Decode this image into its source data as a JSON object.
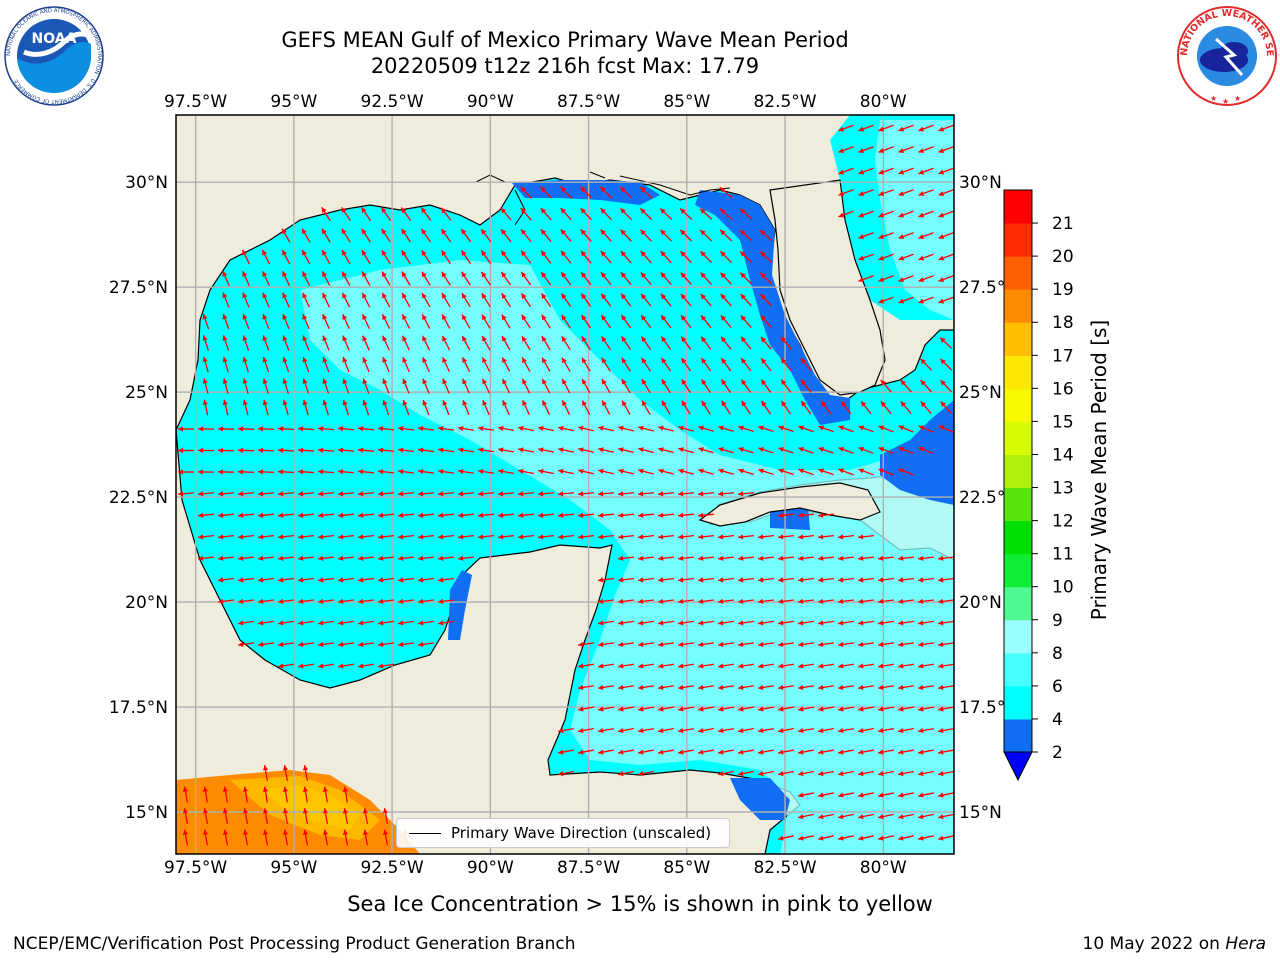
{
  "title": {
    "line1": "GEFS MEAN Gulf of Mexico Primary Wave Mean Period",
    "line2": "20220509 t12z 216h fcst   Max: 17.79"
  },
  "logos": {
    "left_icon": "noaa-logo-icon",
    "left_text": "NOAA",
    "left_ring_text": "NATIONAL OCEANIC AND ATMOSPHERIC ADMINISTRATION · U.S. DEPARTMENT OF COMMERCE",
    "right_icon": "national-weather-service-logo-icon",
    "right_ring_text": "NATIONAL WEATHER SERVICE"
  },
  "map": {
    "lon_range": [
      -98,
      -78.2
    ],
    "lat_range": [
      14,
      31.6
    ],
    "lon_ticks": [
      "97.5°W",
      "95°W",
      "92.5°W",
      "90°W",
      "87.5°W",
      "85°W",
      "82.5°W",
      "80°W"
    ],
    "lon_tick_values": [
      -97.5,
      -95,
      -92.5,
      -90,
      -87.5,
      -85,
      -82.5,
      -80
    ],
    "lat_ticks": [
      "30°N",
      "27.5°N",
      "25°N",
      "22.5°N",
      "20°N",
      "17.5°N",
      "15°N"
    ],
    "lat_tick_values": [
      30,
      27.5,
      25,
      22.5,
      20,
      17.5,
      15
    ],
    "grid": true,
    "land_color": "#efecdc",
    "arrow_color": "#ff0000",
    "legend_label": "Primary Wave Direction (unscaled)",
    "legend_position": "lower-center"
  },
  "colorbar": {
    "label": "Primary Wave Mean Period [s]",
    "tick_labels": [
      "2",
      "4",
      "6",
      "8",
      "9",
      "10",
      "11",
      "12",
      "13",
      "14",
      "15",
      "16",
      "17",
      "18",
      "19",
      "20",
      "21"
    ],
    "levels": [
      2,
      4,
      6,
      8,
      9,
      10,
      11,
      12,
      13,
      14,
      15,
      16,
      17,
      18,
      19,
      20,
      21
    ],
    "colors": [
      "#0f6ef2",
      "#00ffff",
      "#48ffff",
      "#9bfefe",
      "#4ff98f",
      "#0fee34",
      "#00e000",
      "#58e50e",
      "#b0f00a",
      "#d8fb00",
      "#f7f700",
      "#fde800",
      "#ffbf00",
      "#ff8c00",
      "#ff5f00",
      "#ff2c00",
      "#ff0000"
    ],
    "under_color": "#0000ff",
    "extend": "min"
  },
  "notes": {
    "ice": "Sea Ice Concentration > 15% is shown in pink to yellow",
    "producer": "NCEP/EMC/Verification Post Processing Product Generation Branch",
    "date": "10 May 2022 on ",
    "system": "Hera"
  }
}
